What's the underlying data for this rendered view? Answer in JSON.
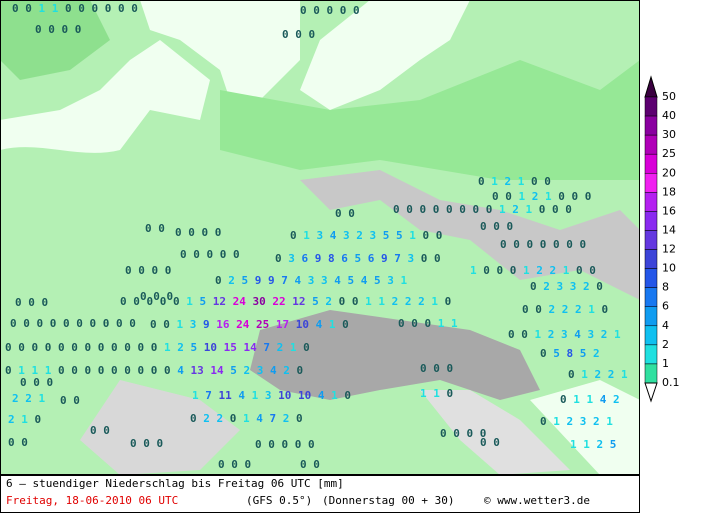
{
  "map": {
    "rows": [
      "0 0 1 1 0 0 0 0 0 0",
      "0 0 0 0 0",
      "0 0 0 0",
      "0 0 0",
      "0 1 2 1 0 0",
      "0 0 1 2 1 0 0 0",
      "0 0",
      "0 0 0 0 0 0 0 0 1 2 1 0 0 0",
      "0 0",
      "0 0 0 0",
      "0 1 3 4 3 2 3 5 5 1 0 0",
      "0 0 0",
      "0 0 0 0 0",
      "0 0 0 0 0 0 0",
      "0 3 6 9 8 6 5 6 9 7 3 0 0",
      "0 0 0 0",
      "0 2 5 9 9 7 4 3 3 4 5 4 5 3 1",
      "1 0 0 0 1 2 2 1 0 0",
      "0 0 0",
      "0 2 3 3 2 0",
      "0 0 0",
      "0 0 0 0 0 1 5 12 24 30 22 12 5 2 0 0 1 1 2 2 2 1 0",
      "0 0 2 2 2 1 0",
      "0 0 0 0 0 0 0 0 0 0",
      "0 0 1 3 9 16 24 25 17 10 4 1 0",
      "0 0 0 1 1",
      "0 0 1 2 3 4 3 2 1",
      "0 0 0 0 0 0 0 0 0 0 0 0 1 2 5 10 15 14 7 2 1 0",
      "0 5 8 5 2",
      "0 1 1 1 0 0 0 0 0 0 0 0 0 4 13 14 5 2 3 4 2 0",
      "0 0 0",
      "0 1 2 2 1",
      "0 0 0",
      "1 7 11 4 1 3 10 10 4 1 0",
      "1 1 0",
      "2 2 1",
      "0 0",
      "0 1 1 4 2",
      "2 1 0",
      "0 2 2 0 1 4 7 2 0",
      "0 1 2 3 2 1",
      "0 0",
      "0 0 0 0",
      "1 1 2 5",
      "0 0",
      "0 0 0",
      "0 0 0 0 0",
      "0 0",
      "0 0 0",
      "0 0"
    ]
  },
  "legend": {
    "levels": [
      50,
      40,
      30,
      25,
      20,
      18,
      16,
      14,
      12,
      10,
      8,
      6,
      4,
      2,
      1,
      0.1
    ],
    "colors": [
      "#3a0040",
      "#5c0070",
      "#8a00a0",
      "#b000b8",
      "#d800d8",
      "#f020f0",
      "#b420f0",
      "#8a2af0",
      "#6438e0",
      "#3c44d8",
      "#2456e8",
      "#1878f0",
      "#109cf0",
      "#10c0f0",
      "#20e0e0",
      "#30e0a0"
    ]
  },
  "footer": {
    "title": "6 – stuendiger Niederschlag bis Freitag 06 UTC [mm]",
    "date": "Freitag, 18-06-2010  06 UTC",
    "model": "(GFS 0.5°)",
    "run": "(Donnerstag 00 + 30)",
    "source": "© www.wetter3.de"
  }
}
